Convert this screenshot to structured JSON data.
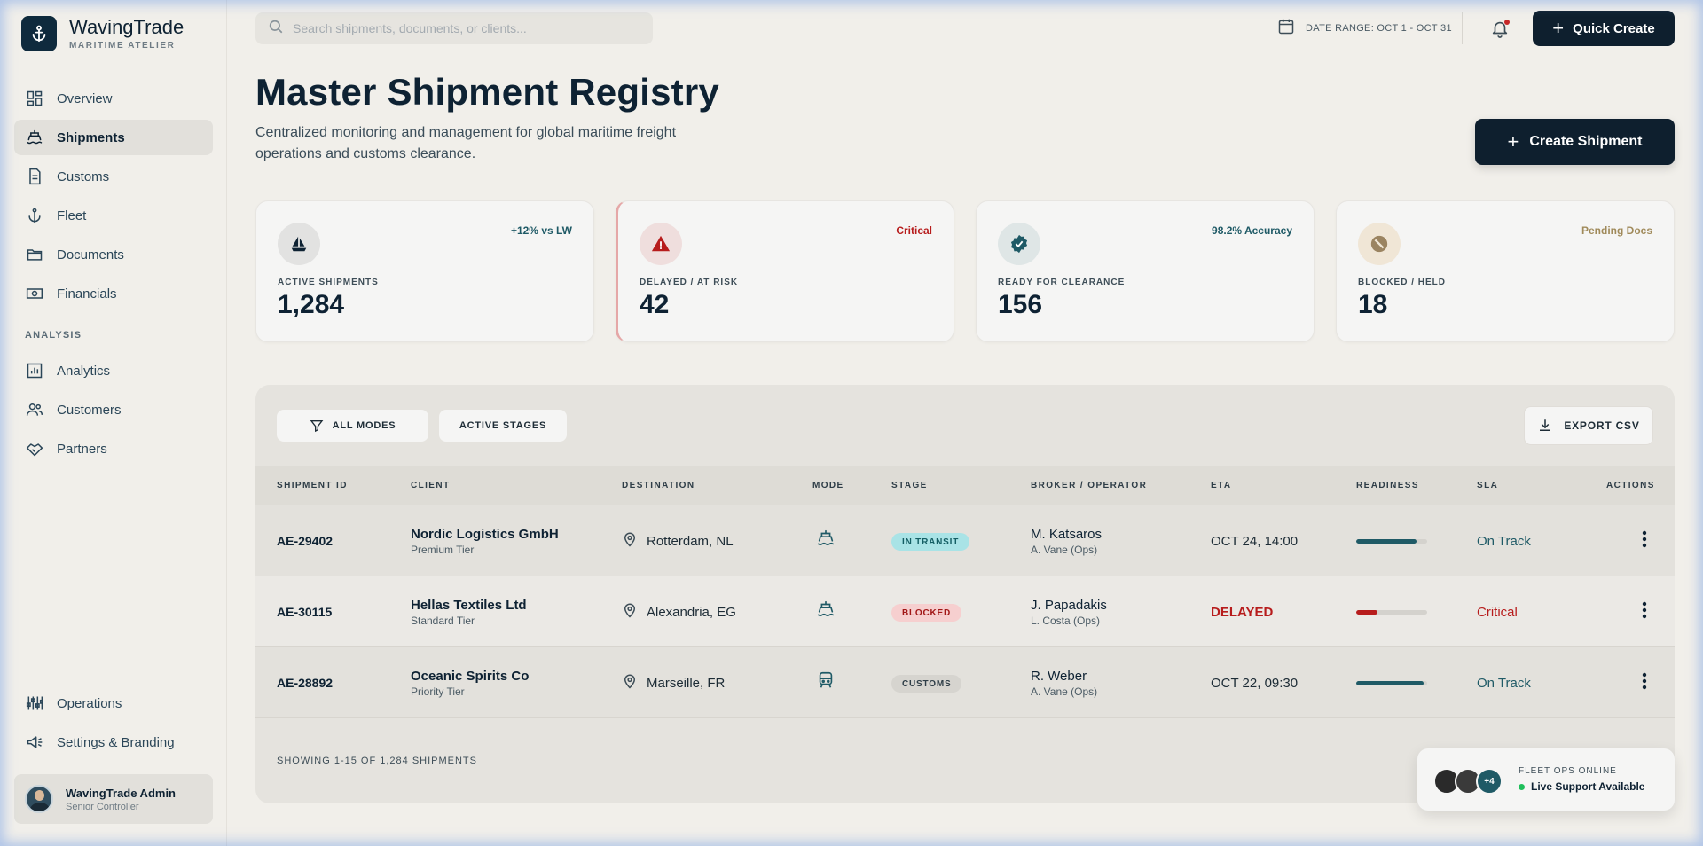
{
  "brand": {
    "name": "WavingTrade",
    "subtitle": "MARITIME ATELIER"
  },
  "sidebar": {
    "items": [
      {
        "label": "Overview",
        "icon": "dashboard-icon"
      },
      {
        "label": "Shipments",
        "icon": "ship-icon",
        "active": true
      },
      {
        "label": "Customs",
        "icon": "document-icon"
      },
      {
        "label": "Fleet",
        "icon": "anchor-icon"
      },
      {
        "label": "Documents",
        "icon": "folder-icon"
      },
      {
        "label": "Financials",
        "icon": "money-icon"
      }
    ],
    "section_label": "ANALYSIS",
    "analysis_items": [
      {
        "label": "Analytics",
        "icon": "chart-icon"
      },
      {
        "label": "Customers",
        "icon": "users-icon"
      },
      {
        "label": "Partners",
        "icon": "handshake-icon"
      }
    ],
    "bottom_items": [
      {
        "label": "Operations",
        "icon": "sliders-icon"
      },
      {
        "label": "Settings & Branding",
        "icon": "megaphone-icon"
      }
    ],
    "profile": {
      "name": "WavingTrade Admin",
      "role": "Senior Controller"
    }
  },
  "topbar": {
    "search_placeholder": "Search shipments, documents, or clients...",
    "date_range": "DATE RANGE: OCT 1 - OCT 31",
    "quick_create": "Quick Create"
  },
  "header": {
    "title": "Master Shipment Registry",
    "description": "Centralized monitoring and management for global maritime freight operations and customs clearance.",
    "create_button": "Create Shipment"
  },
  "kpis": [
    {
      "label": "ACTIVE SHIPMENTS",
      "value": "1,284",
      "badge": "+12% vs LW",
      "badge_color": "#1f5a66",
      "icon": "sailboat-icon"
    },
    {
      "label": "DELAYED / AT RISK",
      "value": "42",
      "badge": "Critical",
      "badge_color": "#b71c1c",
      "icon": "warning-icon"
    },
    {
      "label": "READY FOR CLEARANCE",
      "value": "156",
      "badge": "98.2% Accuracy",
      "badge_color": "#1f5a66",
      "icon": "verified-icon"
    },
    {
      "label": "BLOCKED / HELD",
      "value": "18",
      "badge": "Pending Docs",
      "badge_color": "#a08a5a",
      "icon": "blocked-icon"
    }
  ],
  "filters": {
    "modes": "ALL MODES",
    "stages": "ACTIVE STAGES",
    "export": "EXPORT CSV"
  },
  "table": {
    "columns": [
      "SHIPMENT ID",
      "CLIENT",
      "DESTINATION",
      "MODE",
      "STAGE",
      "BROKER / OPERATOR",
      "ETA",
      "READINESS",
      "SLA",
      "ACTIONS"
    ],
    "rows": [
      {
        "id": "AE-29402",
        "client": "Nordic Logistics GmbH",
        "tier": "Premium Tier",
        "destination": "Rotterdam, NL",
        "mode": "ship-icon",
        "stage": "IN TRANSIT",
        "broker": "M. Katsaros",
        "ops": "A. Vane (Ops)",
        "eta": "OCT 24, 14:00",
        "readiness": 0.85,
        "sla": "On Track"
      },
      {
        "id": "AE-30115",
        "client": "Hellas Textiles Ltd",
        "tier": "Standard Tier",
        "destination": "Alexandria, EG",
        "mode": "ship-icon",
        "stage": "BLOCKED",
        "broker": "J. Papadakis",
        "ops": "L. Costa (Ops)",
        "eta": "DELAYED",
        "readiness": 0.3,
        "sla": "Critical"
      },
      {
        "id": "AE-28892",
        "client": "Oceanic Spirits Co",
        "tier": "Priority Tier",
        "destination": "Marseille, FR",
        "mode": "train-icon",
        "stage": "CUSTOMS",
        "broker": "R. Weber",
        "ops": "A. Vane (Ops)",
        "eta": "OCT 22, 09:30",
        "readiness": 0.95,
        "sla": "On Track"
      }
    ],
    "footer": "SHOWING 1-15 OF 1,284 SHIPMENTS"
  },
  "fleet": {
    "label": "FLEET OPS ONLINE",
    "status": "Live Support Available",
    "extra_count": "+4"
  },
  "colors": {
    "primary": "#0e1f2e",
    "accent_teal": "#1f5a66",
    "danger": "#b71c1c"
  }
}
